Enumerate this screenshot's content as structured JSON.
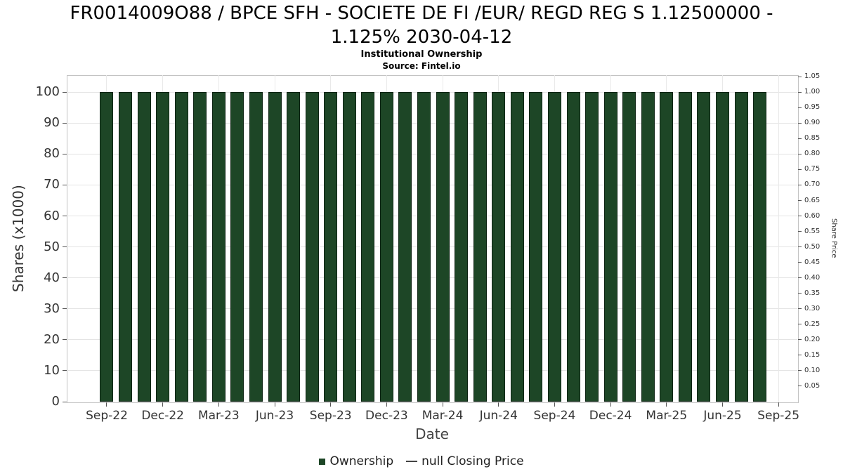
{
  "chart_data": {
    "type": "bar",
    "title": "FR0014009O88 / BPCE SFH - SOCIETE DE FI /EUR/ REGD REG S 1.12500000 - 1.125% 2030-04-12",
    "subtitle": "Institutional Ownership",
    "source": "Source: Fintel.io",
    "xlabel": "Date",
    "ylabel": "Shares (x1000)",
    "y2label": "Share Price",
    "series_name": "Ownership",
    "x": [
      "Sep-22",
      "Oct-22",
      "Nov-22",
      "Dec-22",
      "Jan-23",
      "Feb-23",
      "Mar-23",
      "Apr-23",
      "May-23",
      "Jun-23",
      "Jul-23",
      "Aug-23",
      "Sep-23",
      "Oct-23",
      "Nov-23",
      "Dec-23",
      "Jan-24",
      "Feb-24",
      "Mar-24",
      "Apr-24",
      "May-24",
      "Jun-24",
      "Jul-24",
      "Aug-24",
      "Sep-24",
      "Oct-24",
      "Nov-24",
      "Dec-24",
      "Jan-25",
      "Feb-25",
      "Mar-25",
      "Apr-25",
      "May-25",
      "Jun-25",
      "Jul-25",
      "Aug-25"
    ],
    "values": [
      100,
      100,
      100,
      100,
      100,
      100,
      100,
      100,
      100,
      100,
      100,
      100,
      100,
      100,
      100,
      100,
      100,
      100,
      100,
      100,
      100,
      100,
      100,
      100,
      100,
      100,
      100,
      100,
      100,
      100,
      100,
      100,
      100,
      100,
      100,
      100
    ],
    "ylim": [
      0,
      105.5
    ],
    "y2lim": [
      0,
      1.055
    ],
    "yticks_left": [
      0,
      10,
      20,
      30,
      40,
      50,
      60,
      70,
      80,
      90,
      100
    ],
    "yticks_right": [
      "0.05",
      "0.10",
      "0.15",
      "0.20",
      "0.25",
      "0.30",
      "0.35",
      "0.40",
      "0.45",
      "0.50",
      "0.55",
      "0.60",
      "0.65",
      "0.70",
      "0.75",
      "0.80",
      "0.85",
      "0.90",
      "0.95",
      "1.00",
      "1.05"
    ],
    "xtick_labels": [
      "Sep-22",
      "Dec-22",
      "Mar-23",
      "Jun-23",
      "Sep-23",
      "Dec-23",
      "Mar-24",
      "Jun-24",
      "Sep-24",
      "Dec-24",
      "Mar-25",
      "Jun-25",
      "Sep-25"
    ],
    "grid": true,
    "legend_position": "bottom",
    "bar_color": "#1d4626",
    "bar_border_color": "#0d2413",
    "grid_color": "#e4e4e4",
    "legend": [
      {
        "label": "Ownership",
        "marker": "square",
        "color": "#1d4626"
      },
      {
        "label": "null Closing Price",
        "marker": "line",
        "color": "#444444"
      }
    ]
  }
}
